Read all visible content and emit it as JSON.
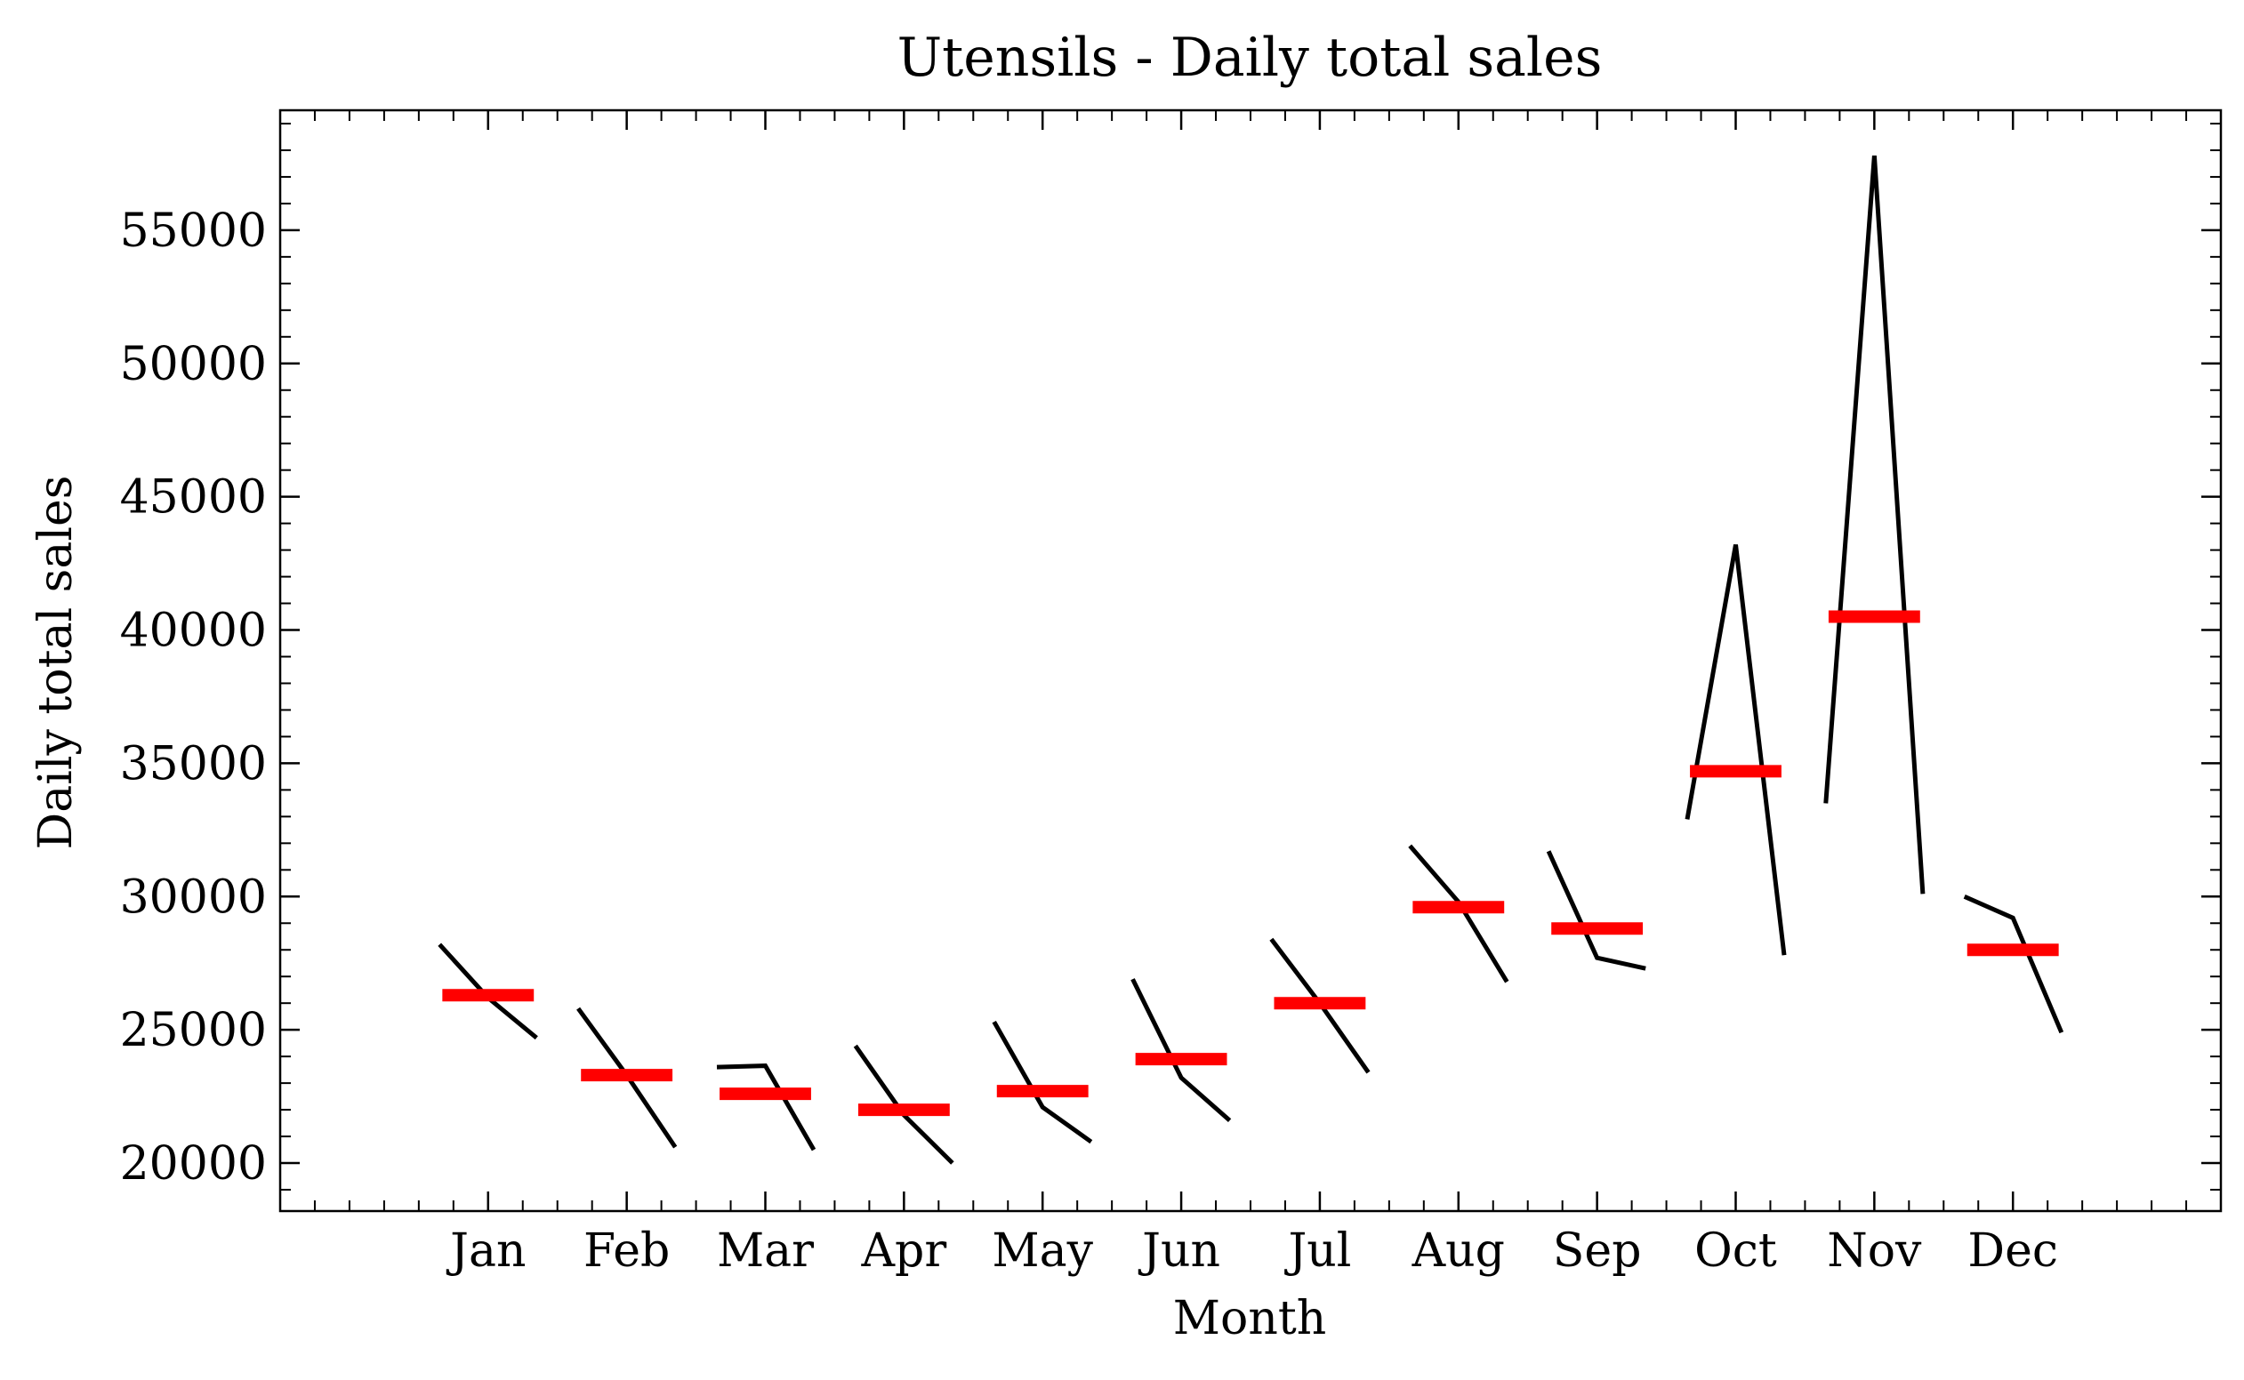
{
  "chart_data": {
    "type": "line",
    "title": "Utensils - Daily total sales",
    "xlabel": "Month",
    "ylabel": "Daily total sales",
    "ylim": [
      18200,
      59500
    ],
    "xlim": [
      -1.5,
      12.5
    ],
    "yticks": [
      20000,
      25000,
      30000,
      35000,
      40000,
      45000,
      50000,
      55000
    ],
    "y_minor_step": 1000,
    "x_minor_step": 0.25,
    "categories": [
      "Jan",
      "Feb",
      "Mar",
      "Apr",
      "May",
      "Jun",
      "Jul",
      "Aug",
      "Sep",
      "Oct",
      "Nov",
      "Dec"
    ],
    "series": [
      {
        "values": [
          [
            28200,
            26200,
            24700
          ],
          [
            25800,
            23300,
            20600
          ],
          [
            23600,
            23650,
            20500
          ],
          [
            24400,
            21800,
            20000
          ],
          [
            25300,
            22100,
            20800
          ],
          [
            26900,
            23200,
            21600
          ],
          [
            28400,
            26000,
            23400
          ],
          [
            31900,
            29800,
            26800
          ],
          [
            31700,
            27700,
            27300
          ],
          [
            32900,
            43200,
            27800
          ],
          [
            33500,
            57800,
            30100
          ],
          [
            30000,
            29200,
            24900
          ]
        ]
      }
    ],
    "means": [
      26300,
      23300,
      22600,
      22000,
      22700,
      23900,
      26000,
      29600,
      28800,
      34700,
      40500,
      28000
    ],
    "colors": {
      "line": "#000000",
      "mean": "#ff0000"
    },
    "grid": false,
    "legend": "none"
  }
}
